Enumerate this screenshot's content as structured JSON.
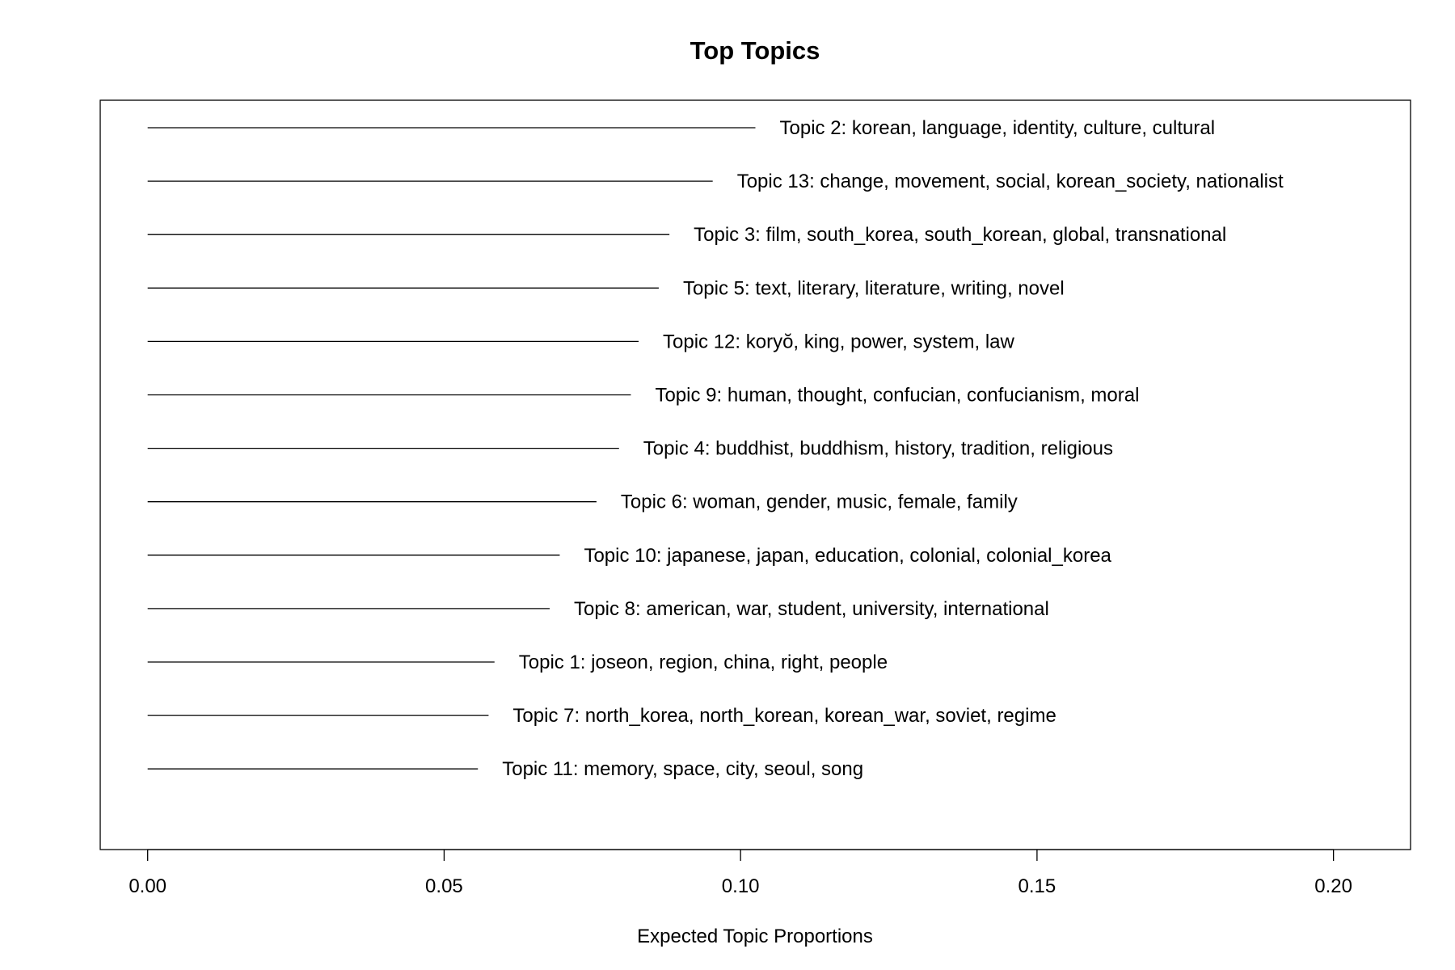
{
  "chart_data": {
    "type": "bar",
    "title": "Top Topics",
    "xlabel": "Expected Topic Proportions",
    "ylabel": "",
    "xlim": [
      -0.008,
      0.213
    ],
    "x_ticks": [
      "0.00",
      "0.05",
      "0.10",
      "0.15",
      "0.20"
    ],
    "orientation": "horizontal",
    "grid": false,
    "legend": "none",
    "series": [
      {
        "labels": [
          "Topic 2: korean, language, identity, culture, cultural",
          "Topic 13: change, movement, social, korean_society, nationalist",
          "Topic 3: film, south_korea, south_korean, global, transnational",
          "Topic 5: text, literary, literature, writing, novel",
          "Topic 12: koryŏ, king, power, system, law",
          "Topic 9: human, thought, confucian, confucianism, moral",
          "Topic 4: buddhist, buddhism, history, tradition, religious",
          "Topic 6: woman, gender, music, female, family",
          "Topic 10: japanese, japan, education, colonial, colonial_korea",
          "Topic 8: american, war, student, university, international",
          "Topic 1: joseon, region, china, right, people",
          "Topic 7: north_korea, north_korean, korean_war, soviet, regime",
          "Topic 11: memory, space, city, seoul, song"
        ],
        "values": [
          0.1025,
          0.0953,
          0.088,
          0.0862,
          0.0828,
          0.0815,
          0.0795,
          0.0757,
          0.0695,
          0.0678,
          0.0585,
          0.0575,
          0.0557
        ]
      }
    ]
  }
}
